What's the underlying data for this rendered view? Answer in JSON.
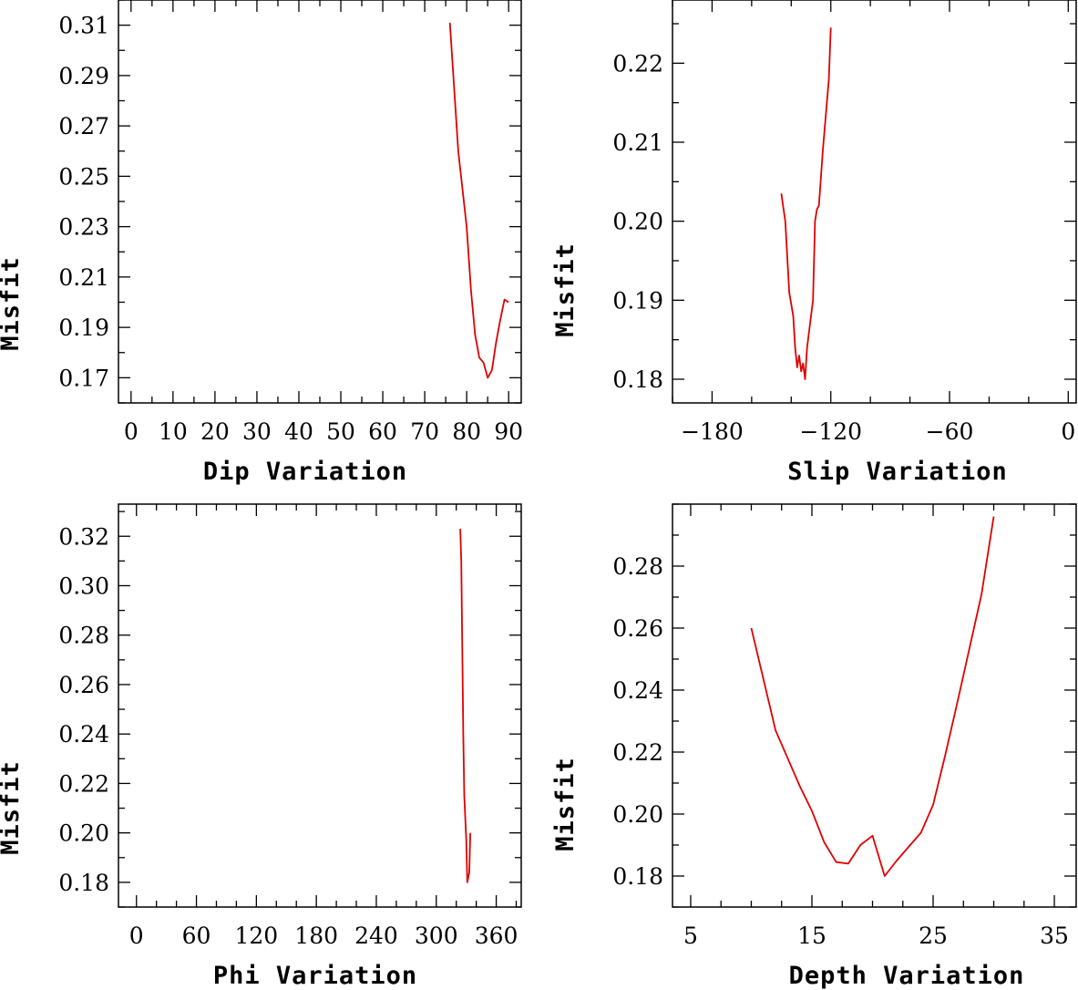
{
  "chart_data": [
    {
      "type": "line",
      "xlabel": "Dip Variation",
      "ylabel": "Misfit",
      "xlim": [
        -3,
        93
      ],
      "ylim": [
        0.16,
        0.32
      ],
      "xticks": [
        0,
        10,
        20,
        30,
        40,
        50,
        60,
        70,
        80,
        90
      ],
      "xtick_labels": [
        "0",
        "10",
        "20",
        "30",
        "40",
        "50",
        "60",
        "70",
        "80",
        "90"
      ],
      "xminor": 5,
      "yticks": [
        0.17,
        0.19,
        0.21,
        0.23,
        0.25,
        0.27,
        0.29,
        0.31
      ],
      "ytick_labels": [
        "0.17",
        "0.19",
        "0.21",
        "0.23",
        "0.25",
        "0.27",
        "0.29",
        "0.31"
      ],
      "yminor": 0.01,
      "series": [
        {
          "name": "misfit",
          "color": "#e00000",
          "x": [
            76,
            78,
            80,
            81,
            82,
            83,
            84,
            85,
            86,
            87,
            88,
            89,
            90
          ],
          "y": [
            0.311,
            0.26,
            0.23,
            0.205,
            0.187,
            0.178,
            0.176,
            0.17,
            0.173,
            0.184,
            0.193,
            0.201,
            0.2
          ]
        }
      ]
    },
    {
      "type": "line",
      "xlabel": "Slip Variation",
      "ylabel": "Misfit",
      "xlim": [
        -200,
        4
      ],
      "ylim": [
        0.177,
        0.228
      ],
      "xticks": [
        -180,
        -120,
        -60,
        0
      ],
      "xtick_labels": [
        "−180",
        "−120",
        "−60",
        "0"
      ],
      "xminor": 20,
      "yticks": [
        0.18,
        0.19,
        0.2,
        0.21,
        0.22
      ],
      "ytick_labels": [
        "0.18",
        "0.19",
        "0.20",
        "0.21",
        "0.22"
      ],
      "yminor": 0.005,
      "series": [
        {
          "name": "misfit",
          "color": "#e00000",
          "x": [
            -145,
            -143,
            -141,
            -139,
            -138,
            -137,
            -136,
            -135,
            -134,
            -133,
            -132,
            -130,
            -129,
            -128,
            -127,
            -126,
            -124,
            -123,
            -121,
            -120
          ],
          "y": [
            0.2035,
            0.2,
            0.191,
            0.188,
            0.184,
            0.1815,
            0.183,
            0.181,
            0.182,
            0.18,
            0.184,
            0.188,
            0.19,
            0.2,
            0.2015,
            0.202,
            0.209,
            0.212,
            0.218,
            0.2245
          ]
        }
      ]
    },
    {
      "type": "line",
      "xlabel": "Phi Variation",
      "ylabel": "Misfit",
      "xlim": [
        -18,
        385
      ],
      "ylim": [
        0.17,
        0.333
      ],
      "xticks": [
        0,
        60,
        120,
        180,
        240,
        300,
        360
      ],
      "xtick_labels": [
        "0",
        "60",
        "120",
        "180",
        "240",
        "300",
        "360"
      ],
      "xminor": 20,
      "yticks": [
        0.18,
        0.2,
        0.22,
        0.24,
        0.26,
        0.28,
        0.3,
        0.32
      ],
      "ytick_labels": [
        "0.18",
        "0.20",
        "0.22",
        "0.24",
        "0.26",
        "0.28",
        "0.30",
        "0.32"
      ],
      "yminor": 0.01,
      "series": [
        {
          "name": "misfit",
          "color": "#e00000",
          "x": [
            324,
            325,
            327,
            328,
            330,
            331,
            333,
            334
          ],
          "y": [
            0.323,
            0.31,
            0.24,
            0.215,
            0.197,
            0.18,
            0.184,
            0.2
          ]
        }
      ]
    },
    {
      "type": "line",
      "xlabel": "Depth Variation",
      "ylabel": "Misfit",
      "xlim": [
        3.5,
        36.8
      ],
      "ylim": [
        0.17,
        0.3
      ],
      "xticks": [
        5,
        15,
        25,
        35
      ],
      "xtick_labels": [
        "5",
        "15",
        "25",
        "35"
      ],
      "xminor": 2.5,
      "yticks": [
        0.18,
        0.2,
        0.22,
        0.24,
        0.26,
        0.28
      ],
      "ytick_labels": [
        "0.18",
        "0.20",
        "0.22",
        "0.24",
        "0.26",
        "0.28"
      ],
      "yminor": 0.01,
      "series": [
        {
          "name": "misfit",
          "color": "#e00000",
          "x": [
            10,
            12,
            14,
            15,
            16,
            17,
            18,
            19,
            20,
            21,
            22,
            24,
            25,
            26,
            27,
            29,
            30
          ],
          "y": [
            0.26,
            0.227,
            0.209,
            0.201,
            0.191,
            0.1845,
            0.184,
            0.19,
            0.193,
            0.18,
            0.185,
            0.194,
            0.203,
            0.219,
            0.236,
            0.271,
            0.296
          ]
        }
      ]
    }
  ]
}
